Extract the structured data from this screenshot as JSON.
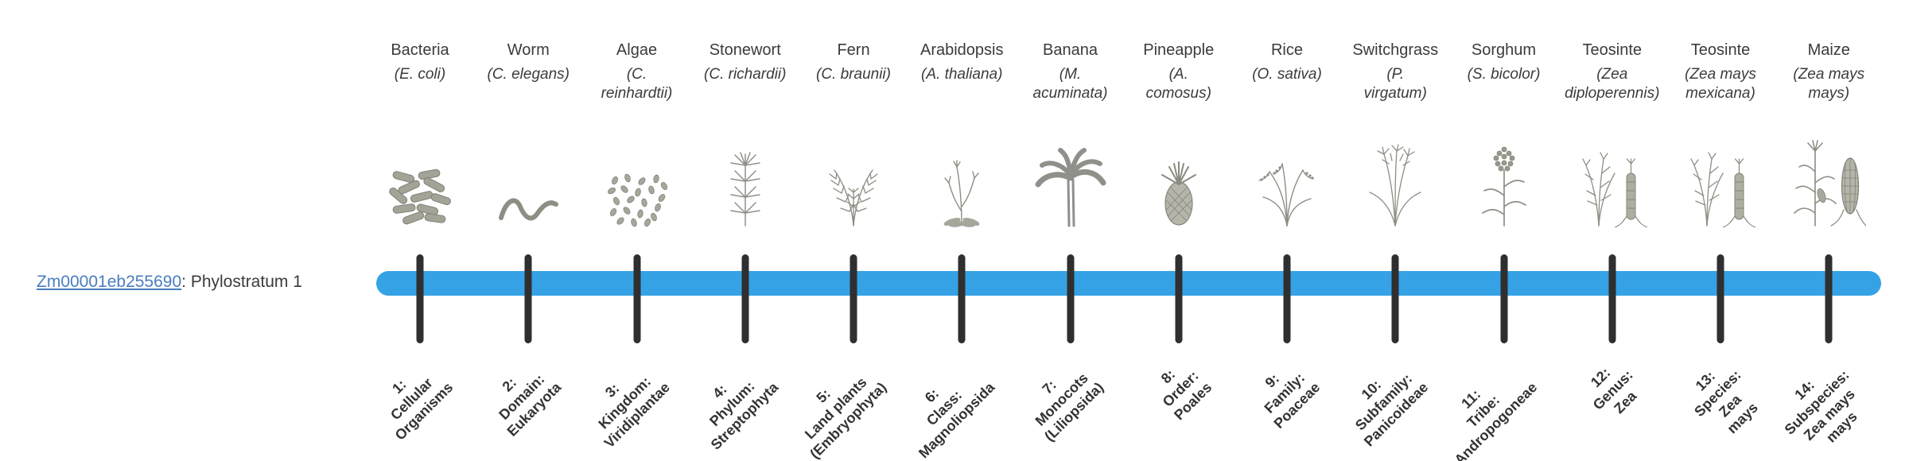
{
  "gene_row": {
    "gene_id": "Zm00001eb255690",
    "rest": ": Phylostratum 1",
    "link_color": "#4a7dbf"
  },
  "timeline": {
    "bar_color": "#35a2e5",
    "tick_color": "#2f2f2f",
    "columns": [
      {
        "name": "Bacteria",
        "sci": "(E. coli)",
        "icon": "bacteria",
        "stratum": "1:\nCellular\nOrganisms"
      },
      {
        "name": "Worm",
        "sci": "(C. elegans)",
        "icon": "worm",
        "stratum": "2:\nDomain:\nEukaryota"
      },
      {
        "name": "Algae",
        "sci": "(C.\nreinhardtii)",
        "icon": "algae",
        "stratum": "3:\nKingdom:\nViridiplantae"
      },
      {
        "name": "Stonewort",
        "sci": "(C. richardii)",
        "icon": "stonewort",
        "stratum": "4:\nPhylum:\nStreptophyta"
      },
      {
        "name": "Fern",
        "sci": "(C. braunii)",
        "icon": "fern",
        "stratum": "5:\nLand plants\n(Embryophyta)"
      },
      {
        "name": "Arabidopsis",
        "sci": "(A. thaliana)",
        "icon": "arabidopsis",
        "stratum": "6:\nClass:\nMagnoliopsida"
      },
      {
        "name": "Banana",
        "sci": "(M.\nacuminata)",
        "icon": "banana",
        "stratum": "7:\nMonocots\n(Liliopsida)"
      },
      {
        "name": "Pineapple",
        "sci": "(A.\ncomosus)",
        "icon": "pineapple",
        "stratum": "8:\nOrder:\nPoales"
      },
      {
        "name": "Rice",
        "sci": "(O. sativa)",
        "icon": "rice",
        "stratum": "9:\nFamily:\nPoaceae"
      },
      {
        "name": "Switchgrass",
        "sci": "(P.\nvirgatum)",
        "icon": "switchgrass",
        "stratum": "10:\nSubfamily:\nPanicoideae"
      },
      {
        "name": "Sorghum",
        "sci": "(S. bicolor)",
        "icon": "sorghum",
        "stratum": "11:\nTribe:\nAndropogoneae"
      },
      {
        "name": "Teosinte",
        "sci": "(Zea\ndiploperennis)",
        "icon": "teosinte",
        "stratum": "12:\nGenus:\nZea"
      },
      {
        "name": "Teosinte",
        "sci": "(Zea mays\nmexicana)",
        "icon": "teosinte",
        "stratum": "13:\nSpecies:\nZea\nmays"
      },
      {
        "name": "Maize",
        "sci": "(Zea mays\nmays)",
        "icon": "maize",
        "stratum": "14:\nSubspecies:\nZea mays\nmays"
      }
    ]
  }
}
